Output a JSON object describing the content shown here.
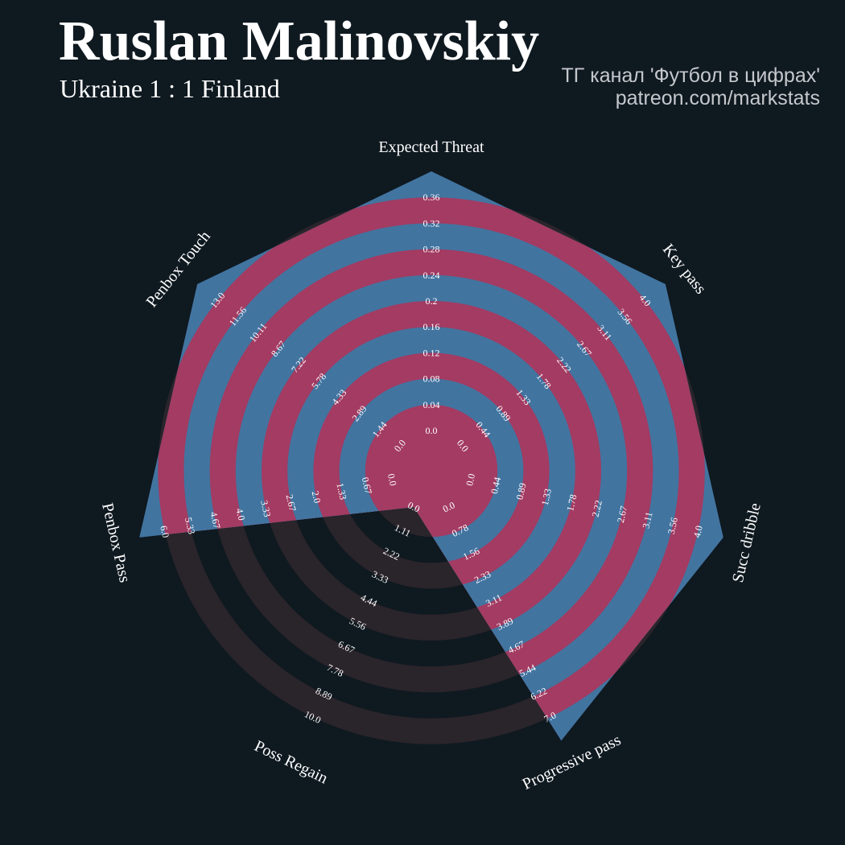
{
  "title": "Ruslan Malinovskiy",
  "subtitle": "Ukraine 1 : 1 Finland",
  "credit": {
    "line1": "ТГ канал 'Футбол в цифрах'",
    "line2": "patreon.com/markstats"
  },
  "colors": {
    "background": "#0f1920",
    "outer_ring": "#2a242b",
    "band": "#a33b62",
    "fill": "#4274a0",
    "text": "#ffffff"
  },
  "chart_data": {
    "type": "radar",
    "num_rings": 10,
    "axes": [
      {
        "label": "Expected Threat",
        "min": 0.0,
        "max": 0.36,
        "value": 0.36,
        "ticks": [
          "0.0",
          "0.04",
          "0.08",
          "0.12",
          "0.16",
          "0.2",
          "0.24",
          "0.28",
          "0.32",
          "0.36"
        ]
      },
      {
        "label": "Key pass",
        "min": 0.0,
        "max": 4.0,
        "value": 4.0,
        "ticks": [
          "0.0",
          "0.44",
          "0.89",
          "1.33",
          "1.78",
          "2.22",
          "2.67",
          "3.11",
          "3.56",
          "4.0"
        ]
      },
      {
        "label": "Succ dribble",
        "min": 0.0,
        "max": 4.0,
        "value": 4.0,
        "ticks": [
          "0.0",
          "0.44",
          "0.89",
          "1.33",
          "1.78",
          "2.22",
          "2.67",
          "3.11",
          "3.56",
          "4.0"
        ]
      },
      {
        "label": "Progressive pass",
        "min": 0.0,
        "max": 7.0,
        "value": 7.0,
        "ticks": [
          "0.0",
          "0.78",
          "1.56",
          "2.33",
          "3.11",
          "3.89",
          "4.67",
          "5.44",
          "6.22",
          "7.0"
        ]
      },
      {
        "label": "Poss Regain",
        "min": 0.0,
        "max": 10.0,
        "value": 0.0,
        "ticks": [
          "0.0",
          "1.11",
          "2.22",
          "3.33",
          "4.44",
          "5.56",
          "6.67",
          "7.78",
          "8.89",
          "10.0"
        ]
      },
      {
        "label": "Penbox Pass",
        "min": 0.0,
        "max": 6.0,
        "value": 6.0,
        "ticks": [
          "0.0",
          "0.67",
          "1.33",
          "2.0",
          "2.67",
          "3.33",
          "4.0",
          "4.67",
          "5.33",
          "6.0"
        ]
      },
      {
        "label": "Penbox Touch",
        "min": 0.0,
        "max": 13.0,
        "value": 13.0,
        "ticks": [
          "0.0",
          "1.44",
          "2.89",
          "4.33",
          "5.78",
          "7.22",
          "8.67",
          "10.11",
          "11.56",
          "13.0"
        ]
      }
    ]
  }
}
